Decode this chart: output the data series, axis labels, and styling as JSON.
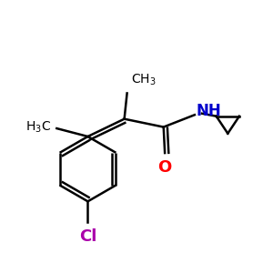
{
  "bg_color": "#ffffff",
  "bond_color": "#000000",
  "N_color": "#0000cc",
  "O_color": "#ff0000",
  "Cl_color": "#aa00aa",
  "line_width": 1.8,
  "figsize": [
    3.0,
    3.0
  ],
  "dpi": 100,
  "xlim": [
    0,
    10
  ],
  "ylim": [
    0,
    10
  ]
}
